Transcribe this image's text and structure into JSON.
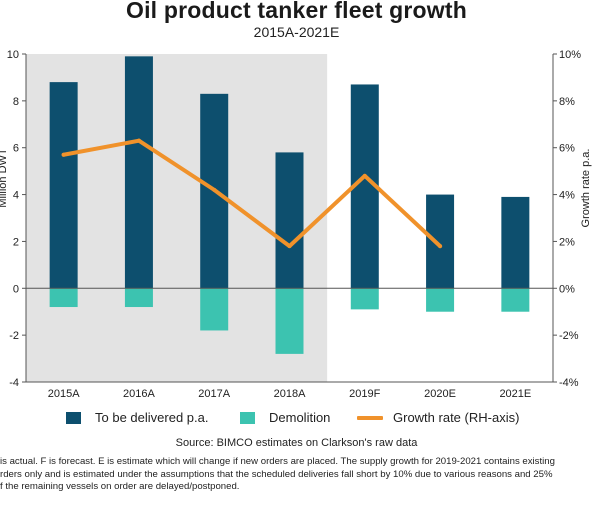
{
  "chart_data": {
    "type": "bar",
    "title": "Oil product tanker fleet growth",
    "subtitle": "2015A-2021E",
    "categories": [
      "2015A",
      "2016A",
      "2017A",
      "2018A",
      "2019F",
      "2020E",
      "2021E"
    ],
    "series": [
      {
        "name": "To be delivered p.a.",
        "type": "bar",
        "axis": "left",
        "color": "#0d4f6e",
        "values": [
          8.8,
          9.9,
          8.3,
          5.8,
          8.7,
          4.0,
          3.9
        ]
      },
      {
        "name": "Demolition",
        "type": "bar",
        "axis": "left",
        "color": "#3cc3b0",
        "values": [
          -0.8,
          -0.8,
          -1.8,
          -2.8,
          -0.9,
          -1.0,
          -1.0
        ]
      },
      {
        "name": "Growth rate (RH-axis)",
        "type": "line",
        "axis": "right",
        "color": "#f0922b",
        "values": [
          5.7,
          6.3,
          4.2,
          1.8,
          4.8,
          1.8,
          null
        ]
      }
    ],
    "ylabel": "Million DWT",
    "y2label": "Growth rate p.a.",
    "ylim": [
      -4,
      10
    ],
    "y2lim": [
      -4,
      10
    ],
    "yticks": [
      "-4",
      "-2",
      "0",
      "2",
      "4",
      "6",
      "8",
      "10"
    ],
    "y2ticks": [
      "-4%",
      "-2%",
      "0%",
      "2%",
      "4%",
      "6%",
      "8%",
      "10%"
    ],
    "shaded_categories": [
      "2015A",
      "2016A",
      "2017A",
      "2018A"
    ],
    "shade_color": "#e3e3e3",
    "legend_position": "bottom",
    "grid": false
  },
  "source": "Source: BIMCO estimates on Clarkson's raw data",
  "footnote": [
    "is actual. F is forecast. E is estimate which will change if new orders are placed. The supply growth for 2019-2021 contains existing",
    "rders only and is estimated under the assumptions that the scheduled deliveries fall short by 10% due to various reasons and 25%",
    "f the remaining vessels on order are delayed/postponed."
  ]
}
